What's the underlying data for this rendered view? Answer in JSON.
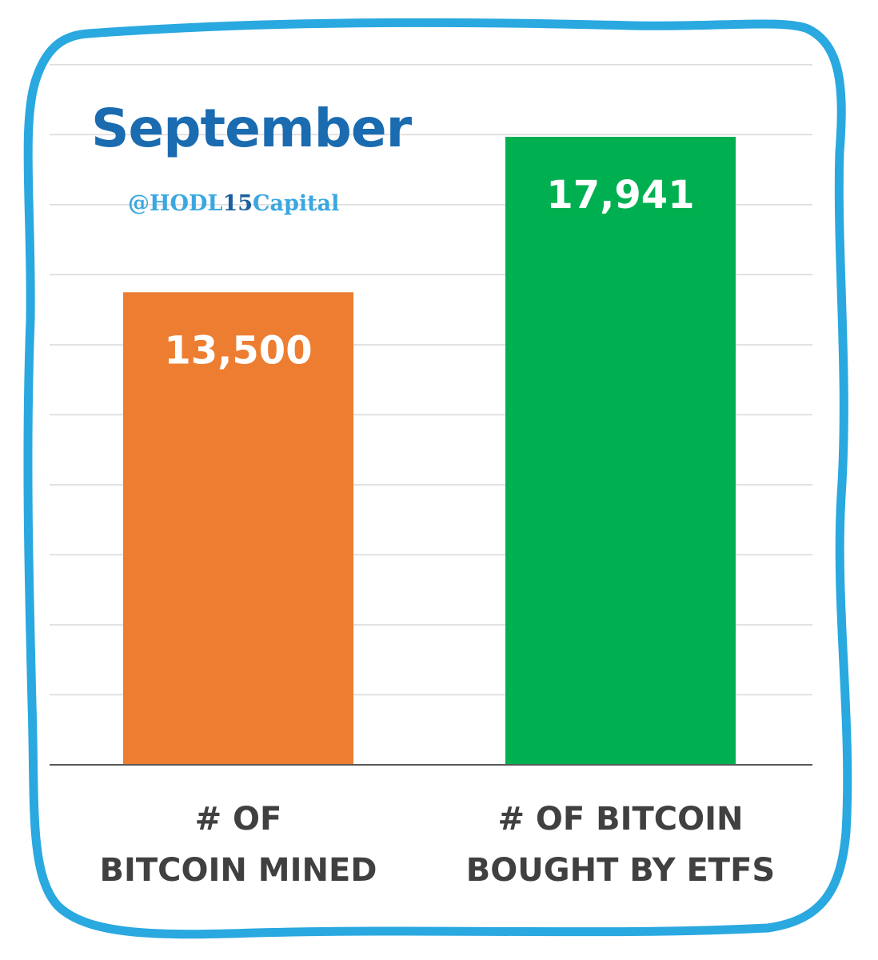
{
  "chart_data": {
    "type": "bar",
    "title": "September",
    "categories": [
      "# OF BITCOIN MINED",
      "# OF BITCOIN BOUGHT BY ETFS"
    ],
    "category_lines": [
      [
        "# OF",
        "BITCOIN MINED"
      ],
      [
        "# OF BITCOIN",
        "BOUGHT BY ETFS"
      ]
    ],
    "values": [
      13500,
      17941
    ],
    "value_labels": [
      "13,500",
      "17,941"
    ],
    "bar_colors": [
      "#ed7d31",
      "#00b050"
    ],
    "ylim": [
      0,
      20000
    ],
    "grid": true,
    "xlabel": "",
    "ylabel": ""
  },
  "watermark": {
    "prefix": "@HODL",
    "mid": "15",
    "suffix": "Capital"
  },
  "colors": {
    "frame": "#2aa8e0",
    "title": "#1a6bb0",
    "watermark": "#3aa7e0",
    "gridline": "#d9d9d9",
    "axis": "#595959",
    "category_text": "#404040"
  }
}
